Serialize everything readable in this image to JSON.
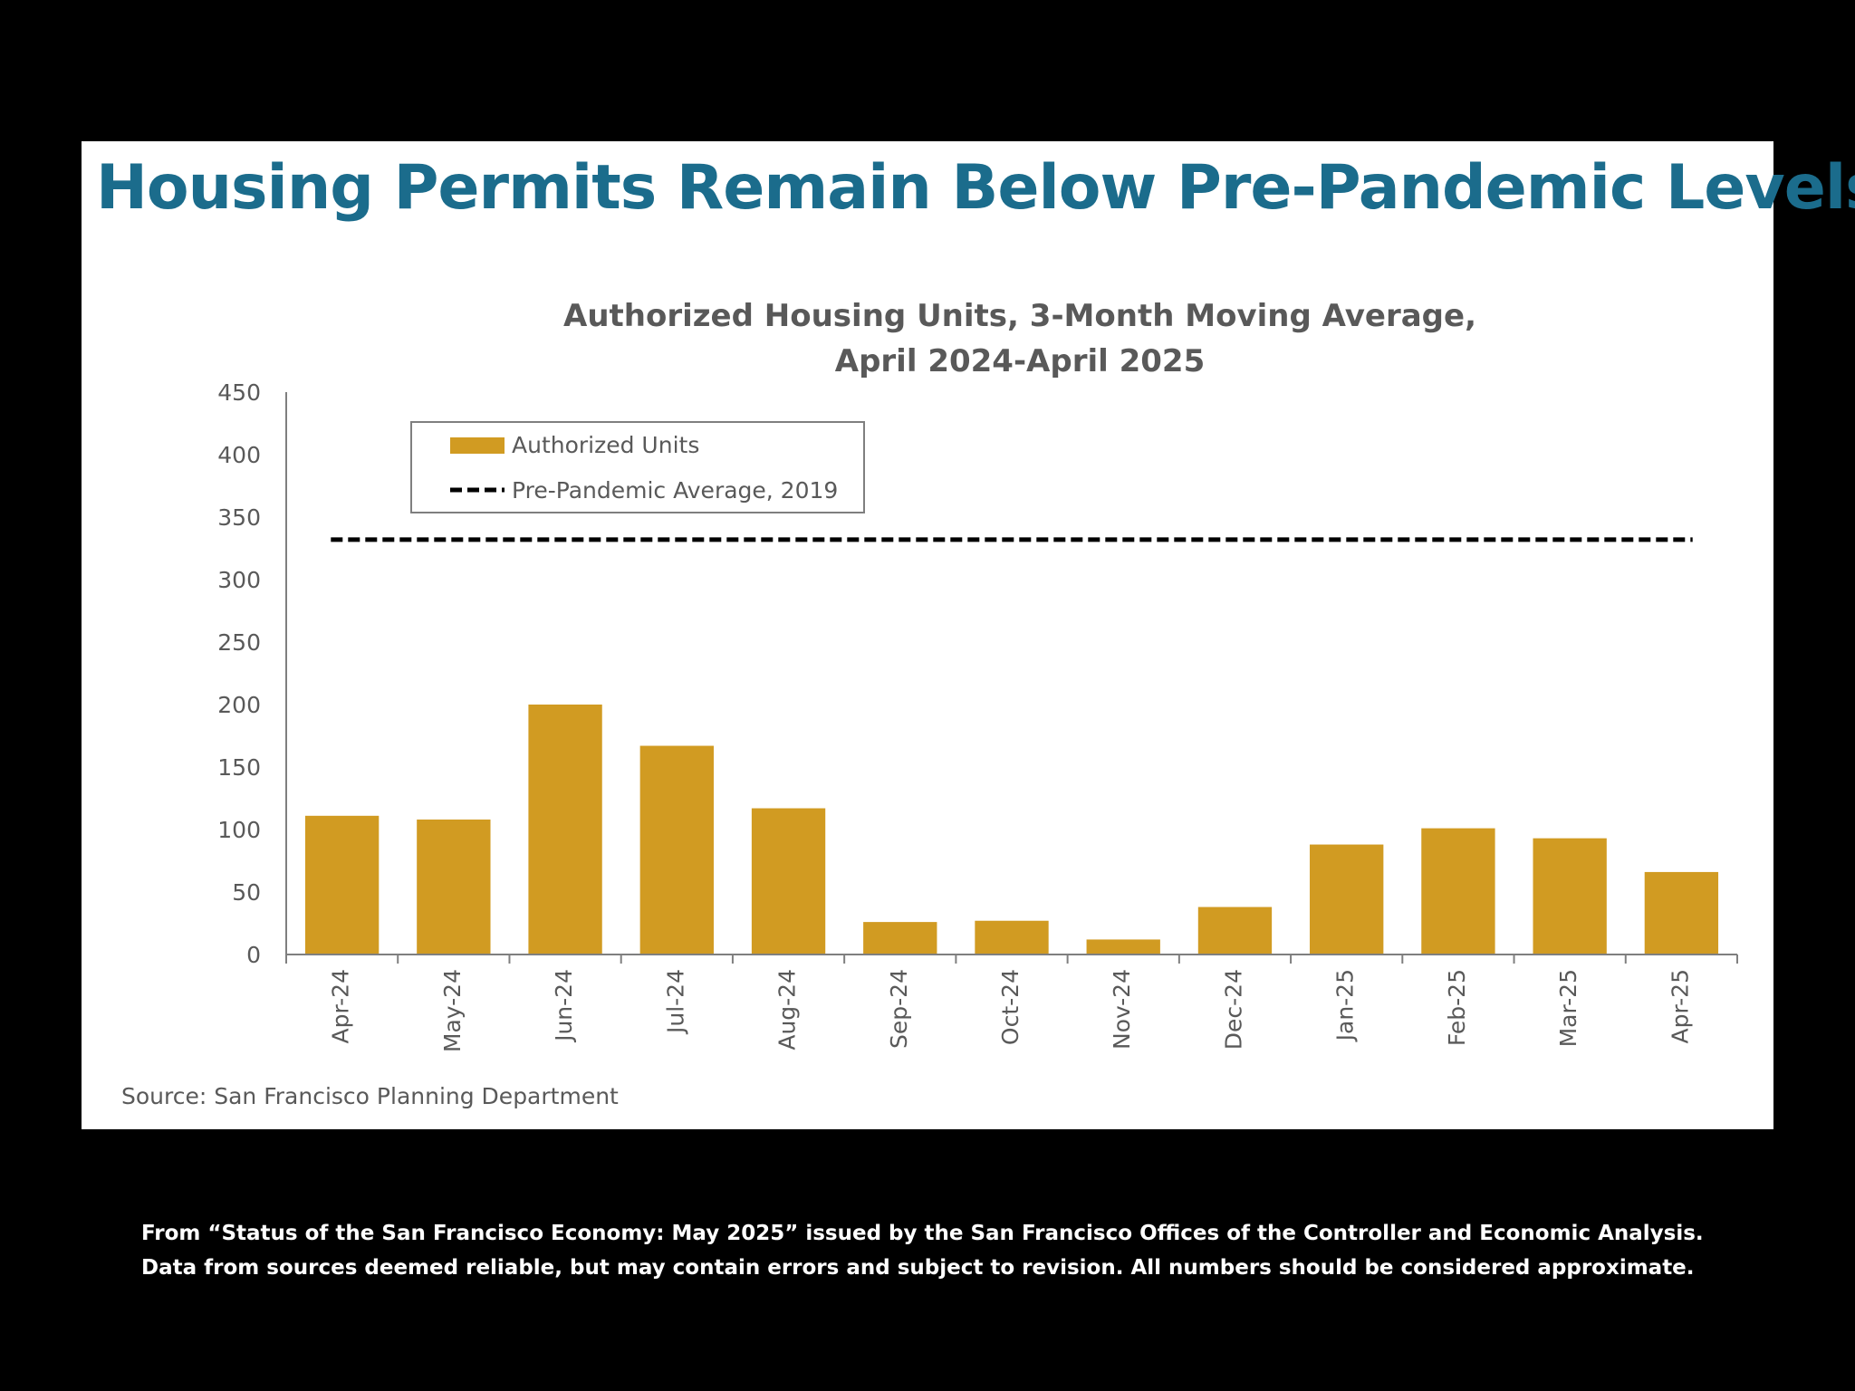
{
  "page": {
    "title": "Housing Permits Remain Below Pre-Pandemic Levels",
    "source": "Source: San Francisco Planning Department",
    "footer_lines": [
      "From “Status of the San Francisco Economy: May 2025” issued by the San Francisco Offices of the Controller and Economic Analysis.",
      "Data from sources deemed reliable, but may contain errors and subject to revision. All numbers should be considered approximate."
    ]
  },
  "colors": {
    "title": "#1b6c8c",
    "bar": "#d19b22",
    "reference_line": "#000000",
    "axis": "#7f7f7f",
    "text": "#595959"
  },
  "chart_data": {
    "type": "bar",
    "title_lines": [
      "Authorized Housing Units, 3-Month Moving Average,",
      "April 2024-April 2025"
    ],
    "categories": [
      "Apr-24",
      "May-24",
      "Jun-24",
      "Jul-24",
      "Aug-24",
      "Sep-24",
      "Oct-24",
      "Nov-24",
      "Dec-24",
      "Jan-25",
      "Feb-25",
      "Mar-25",
      "Apr-25"
    ],
    "series": [
      {
        "name": "Authorized Units",
        "values": [
          111,
          108,
          200,
          167,
          117,
          26,
          27,
          12,
          38,
          88,
          101,
          93,
          66
        ]
      }
    ],
    "reference_line": {
      "name": "Pre-Pandemic Average, 2019",
      "value": 332
    },
    "ylim": [
      0,
      450
    ],
    "yticks": [
      0,
      50,
      100,
      150,
      200,
      250,
      300,
      350,
      400,
      450
    ],
    "xlabel": "",
    "ylabel": "",
    "grid": false,
    "legend_position": "top-left"
  }
}
